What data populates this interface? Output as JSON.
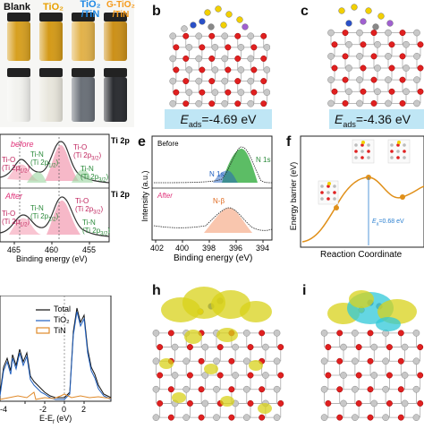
{
  "panel_a": {
    "label": "",
    "vials": [
      {
        "name": "Blank",
        "color": "#111111",
        "top_liquid": "#d7a020",
        "bottom_liquid": "#f2f2ee"
      },
      {
        "name": "TiO₂",
        "color": "#e8a000",
        "top_liquid": "#d49a18",
        "bottom_liquid": "#e8e6dc"
      },
      {
        "name": "TiO₂ /TiN",
        "color": "#1e88e5",
        "top_liquid": "#e2b24a",
        "bottom_liquid": "#6a7078"
      },
      {
        "name": "G-TiO₂ /TiN",
        "color": "#f59a1b",
        "top_liquid": "#cc9018",
        "bottom_liquid": "#2a2c30"
      }
    ]
  },
  "panel_b": {
    "label": "b",
    "eads_text": "E",
    "eads_sub": "ads",
    "eads_value": "=-4.69 eV"
  },
  "panel_c": {
    "label": "c",
    "eads_text": "E",
    "eads_sub": "ads",
    "eads_value": "=-4.36 eV"
  },
  "panel_d": {
    "before": "before",
    "after": "After",
    "title": "Ti 2p",
    "title2": "Ti 2p",
    "xlabel": "Binding energy (eV)",
    "ticks": [
      "465",
      "460",
      "455"
    ],
    "peaks_before": [
      "Ti-O",
      "(Ti 2p",
      "Ti-N",
      "(Ti 2p",
      "Ti-O",
      "(Ti 2p",
      "Ti-N",
      "(Ti 2p"
    ],
    "peaks_after": [
      "Ti-O",
      "(Ti 2p",
      "Ti-N",
      "(Ti 2p",
      "Ti-O",
      "(Ti 2p",
      "Ti-N",
      "(Ti 2p"
    ]
  },
  "panel_e": {
    "label": "e",
    "before": "Before",
    "after": "After",
    "ylabel": "Intensity (a.u.)",
    "xlabel": "Binding energy (eV)",
    "ticks": [
      "402",
      "400",
      "398",
      "396",
      "394"
    ],
    "n1s_left": "N 1s",
    "n1s_right": "N 1s",
    "nb_label": "N-β"
  },
  "panel_f": {
    "label": "f",
    "ylabel": "Energy barrier (eV)",
    "xlabel": "Reaction Coordinate",
    "ea_label": "E",
    "ea_sub": "a",
    "ea_value": "=0.68 eV"
  },
  "panel_g": {
    "legend": [
      "Total",
      "TiO₂",
      "TiN"
    ],
    "legend_colors": [
      "#111111",
      "#1f5fbf",
      "#e08a2a"
    ],
    "xlabel": "E-E",
    "xlabel_sub": "f",
    "xlabel_tail": " (eV)",
    "ticks": [
      "-4",
      "-2",
      "0",
      "2"
    ]
  },
  "panel_h": {
    "label": "h"
  },
  "panel_i": {
    "label": "i"
  }
}
